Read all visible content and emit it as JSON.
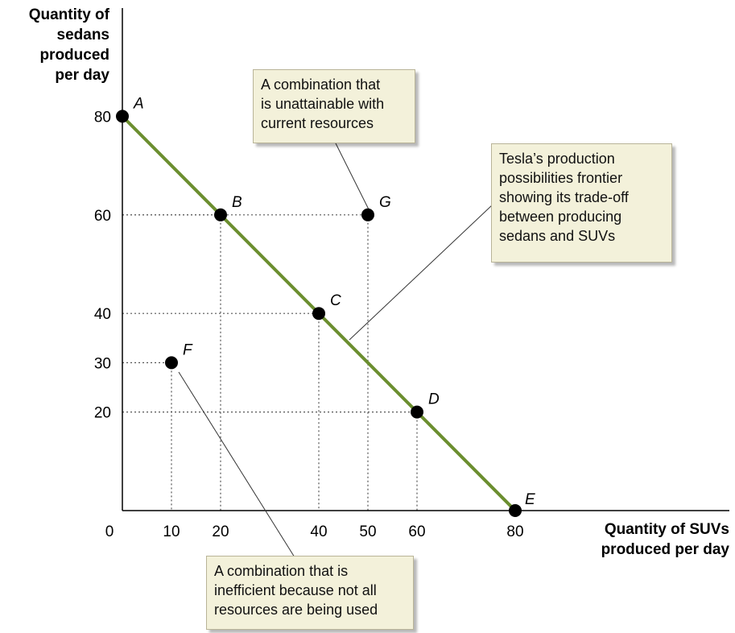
{
  "chart_data": {
    "type": "line",
    "ylabel": [
      "Quantity of",
      "sedans",
      "produced",
      "per day"
    ],
    "xlabel": [
      "Quantity of SUVs",
      "produced per day"
    ],
    "xlim": [
      0,
      88
    ],
    "ylim": [
      0,
      88
    ],
    "x_ticks": [
      "0",
      "10",
      "20",
      "40",
      "50",
      "60",
      "80"
    ],
    "x_tick_values": [
      0,
      10,
      20,
      40,
      50,
      60,
      80
    ],
    "y_ticks": [
      "80",
      "60",
      "40",
      "30",
      "20"
    ],
    "y_tick_values": [
      80,
      60,
      40,
      30,
      20
    ],
    "frontier": [
      [
        0,
        80
      ],
      [
        80,
        0
      ]
    ],
    "points": [
      {
        "label": "A",
        "x": 0,
        "y": 80
      },
      {
        "label": "B",
        "x": 20,
        "y": 60
      },
      {
        "label": "C",
        "x": 40,
        "y": 40
      },
      {
        "label": "D",
        "x": 60,
        "y": 20
      },
      {
        "label": "E",
        "x": 80,
        "y": 0
      },
      {
        "label": "F",
        "x": 10,
        "y": 30
      },
      {
        "label": "G",
        "x": 50,
        "y": 60
      }
    ],
    "colors": {
      "frontier": "#6b8e2f",
      "point": "#000000",
      "guides": "#555555"
    },
    "callouts": {
      "G": [
        "A combination that",
        "is unattainable with",
        "current resources"
      ],
      "frontier": [
        "Tesla’s production",
        "possibilities frontier",
        "showing its trade-off",
        "between producing",
        "sedans and SUVs"
      ],
      "F": [
        "A combination that is",
        "inefficient because not all",
        "resources are being used"
      ]
    }
  }
}
